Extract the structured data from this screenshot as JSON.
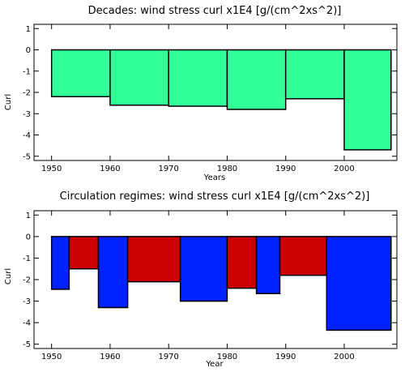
{
  "chart_data": [
    {
      "type": "bar",
      "title": "Decades: wind stress curl x1E4 [g/(cm^2xs^2)]",
      "xlabel": "Years",
      "ylabel": "Curl",
      "xlim": [
        1947,
        2009
      ],
      "ylim": [
        -5.2,
        1.2
      ],
      "xticks": [
        1950,
        1960,
        1970,
        1980,
        1990,
        2000
      ],
      "yticks": [
        1,
        0,
        -1,
        -2,
        -3,
        -4,
        -5
      ],
      "grid": false,
      "bars": [
        {
          "start": 1950,
          "end": 1960,
          "value": -2.2,
          "color": "#33ff99"
        },
        {
          "start": 1960,
          "end": 1970,
          "value": -2.6,
          "color": "#33ff99"
        },
        {
          "start": 1970,
          "end": 1980,
          "value": -2.65,
          "color": "#33ff99"
        },
        {
          "start": 1980,
          "end": 1990,
          "value": -2.8,
          "color": "#33ff99"
        },
        {
          "start": 1990,
          "end": 2000,
          "value": -2.3,
          "color": "#33ff99"
        },
        {
          "start": 2000,
          "end": 2008,
          "value": -4.7,
          "color": "#33ff99"
        }
      ]
    },
    {
      "type": "bar",
      "title": "Circulation regimes: wind stress curl x1E4 [g/(cm^2xs^2)]",
      "xlabel": "Year",
      "ylabel": "Curl",
      "xlim": [
        1947,
        2009
      ],
      "ylim": [
        -5.2,
        1.2
      ],
      "xticks": [
        1950,
        1960,
        1970,
        1980,
        1990,
        2000
      ],
      "yticks": [
        1,
        0,
        -1,
        -2,
        -3,
        -4,
        -5
      ],
      "grid": false,
      "bars": [
        {
          "start": 1950,
          "end": 1953,
          "value": -2.45,
          "color": "#0022ff"
        },
        {
          "start": 1953,
          "end": 1958,
          "value": -1.5,
          "color": "#cc0000"
        },
        {
          "start": 1958,
          "end": 1963,
          "value": -3.3,
          "color": "#0022ff"
        },
        {
          "start": 1963,
          "end": 1972,
          "value": -2.1,
          "color": "#cc0000"
        },
        {
          "start": 1972,
          "end": 1980,
          "value": -3.0,
          "color": "#0022ff"
        },
        {
          "start": 1980,
          "end": 1985,
          "value": -2.4,
          "color": "#cc0000"
        },
        {
          "start": 1985,
          "end": 1989,
          "value": -2.65,
          "color": "#0022ff"
        },
        {
          "start": 1989,
          "end": 1997,
          "value": -1.8,
          "color": "#cc0000"
        },
        {
          "start": 1997,
          "end": 2008,
          "value": -4.35,
          "color": "#0022ff"
        }
      ]
    }
  ]
}
